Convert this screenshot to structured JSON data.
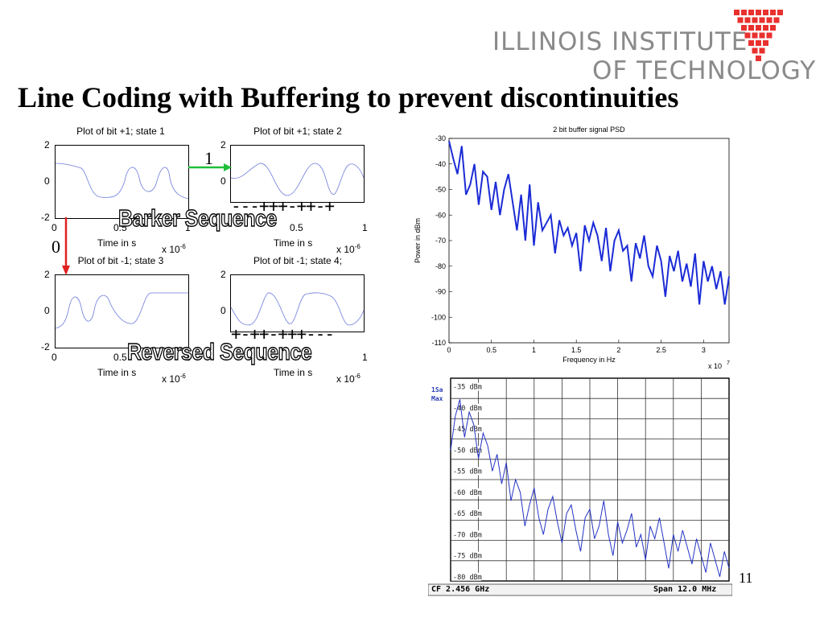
{
  "logo": {
    "line1": "ILLINOIS INSTITUTE",
    "line2": "OF TECHNOLOGY",
    "color": "#e8312f"
  },
  "title": "Line Coding with Buffering to prevent discontinuities",
  "slide_number": "11",
  "annotations": {
    "barker_label": "Barker Sequence",
    "barker_seq": "---+++-++-+",
    "reversed_label": "Reversed Sequence",
    "reversed_seq": "+-++-+++---",
    "bit1_label": "1",
    "bit0_label": "0",
    "arrow1_color": "#1fbf3a",
    "arrow0_color": "#e02020"
  },
  "small_plots": [
    {
      "title": "Plot of bit +1; state 1",
      "xlabel": "Time in s",
      "exponent_base": "x 10",
      "exponent": "-6",
      "yticks": [
        "2",
        "0",
        "-2"
      ],
      "xticks": [
        "0",
        "0.5",
        "1"
      ]
    },
    {
      "title": "Plot of bit +1; state 2",
      "xlabel": "Time in s",
      "exponent_base": "x 10",
      "exponent": "-6",
      "yticks": [
        "2",
        "0"
      ],
      "xticks": [
        "0.5",
        "1"
      ]
    },
    {
      "title": "Plot of bit -1; state 3",
      "xlabel": "Time in s",
      "exponent_base": "x 10",
      "exponent": "-6",
      "yticks": [
        "2",
        "0",
        "-2"
      ],
      "xticks": [
        "0",
        "0.5",
        "1"
      ]
    },
    {
      "title": "Plot of bit -1; state 4;",
      "xlabel": "Time in s",
      "exponent_base": "x 10",
      "exponent": "-6",
      "yticks": [
        "2",
        "0"
      ],
      "xticks": [
        "1"
      ]
    }
  ],
  "chart_data": [
    {
      "type": "line",
      "title": "2 bit buffer signal PSD",
      "xlabel": "Frequency in Hz",
      "ylabel": "Power in dBm",
      "x_exponent_base": "x 10",
      "x_exponent": "7",
      "xlim": [
        0,
        3.3
      ],
      "ylim": [
        -110,
        -30
      ],
      "xticks": [
        "0",
        "0.5",
        "1",
        "1.5",
        "2",
        "2.5",
        "3"
      ],
      "yticks": [
        "-30",
        "-40",
        "-50",
        "-60",
        "-70",
        "-80",
        "-90",
        "-100",
        "-110"
      ],
      "line_color": "#1b2bd6",
      "x": [
        0,
        0.05,
        0.1,
        0.15,
        0.2,
        0.25,
        0.3,
        0.35,
        0.4,
        0.45,
        0.5,
        0.55,
        0.6,
        0.65,
        0.7,
        0.75,
        0.8,
        0.85,
        0.9,
        0.95,
        1.0,
        1.05,
        1.1,
        1.15,
        1.2,
        1.25,
        1.3,
        1.35,
        1.4,
        1.45,
        1.5,
        1.55,
        1.6,
        1.65,
        1.7,
        1.75,
        1.8,
        1.85,
        1.9,
        1.95,
        2.0,
        2.05,
        2.1,
        2.15,
        2.2,
        2.25,
        2.3,
        2.35,
        2.4,
        2.45,
        2.5,
        2.55,
        2.6,
        2.65,
        2.7,
        2.75,
        2.8,
        2.85,
        2.9,
        2.95,
        3.0,
        3.05,
        3.1,
        3.15,
        3.2,
        3.25,
        3.3
      ],
      "y": [
        -31,
        -38,
        -44,
        -33,
        -52,
        -48,
        -40,
        -56,
        -43,
        -45,
        -58,
        -47,
        -60,
        -50,
        -44,
        -55,
        -66,
        -52,
        -70,
        -48,
        -72,
        -55,
        -66,
        -63,
        -60,
        -75,
        -62,
        -68,
        -65,
        -72,
        -67,
        -82,
        -64,
        -70,
        -63,
        -68,
        -78,
        -65,
        -82,
        -70,
        -66,
        -74,
        -72,
        -86,
        -71,
        -77,
        -68,
        -80,
        -84,
        -72,
        -78,
        -92,
        -76,
        -82,
        -74,
        -86,
        -79,
        -88,
        -75,
        -95,
        -78,
        -86,
        -80,
        -89,
        -82,
        -95,
        -84
      ]
    },
    {
      "type": "line",
      "title": "",
      "instrument_labels": [
        "1Sa",
        "Max"
      ],
      "yticks": [
        "-35 dBm",
        "-40 dBm",
        "-45 dBm",
        "-50 dBm",
        "-55 dBm",
        "-60 dBm",
        "-65 dBm",
        "-70 dBm",
        "-75 dBm",
        "-80 dBm"
      ],
      "ylim": [
        -81,
        -33
      ],
      "center_label": "CF 2.456 GHz",
      "span_label": "Span 12.0 MHz",
      "line_color": "#2433c4",
      "x": [
        0,
        0.2,
        0.4,
        0.6,
        0.8,
        1.0,
        1.2,
        1.4,
        1.6,
        1.8,
        2.0,
        2.2,
        2.4,
        2.6,
        2.8,
        3.0,
        3.2,
        3.4,
        3.6,
        3.8,
        4.0,
        4.2,
        4.4,
        4.6,
        4.8,
        5.0,
        5.2,
        5.4,
        5.6,
        5.8,
        6.0,
        6.2,
        6.4,
        6.6,
        6.8,
        7.0,
        7.2,
        7.4,
        7.6,
        7.8,
        8.0,
        8.2,
        8.4,
        8.6,
        8.8,
        9.0,
        9.2,
        9.4,
        9.6,
        9.8,
        10.0,
        10.2,
        10.4,
        10.6,
        10.8,
        11.0,
        11.2,
        11.4,
        11.6,
        11.8,
        12.0
      ],
      "y": [
        -50,
        -42,
        -38,
        -47,
        -41,
        -44,
        -52,
        -46,
        -49,
        -55,
        -51,
        -58,
        -53,
        -62,
        -57,
        -60,
        -68,
        -63,
        -59,
        -66,
        -70,
        -64,
        -61,
        -67,
        -72,
        -65,
        -63,
        -69,
        -74,
        -66,
        -64,
        -71,
        -68,
        -62,
        -70,
        -75,
        -67,
        -72,
        -69,
        -65,
        -73,
        -70,
        -76,
        -68,
        -71,
        -66,
        -72,
        -78,
        -70,
        -74,
        -69,
        -73,
        -77,
        -71,
        -75,
        -79,
        -72,
        -76,
        -80,
        -74,
        -78
      ]
    }
  ]
}
